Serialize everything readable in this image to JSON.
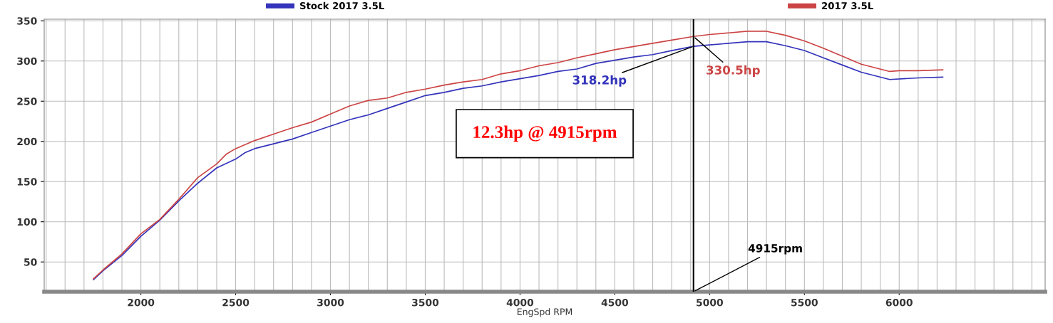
{
  "chart_data": {
    "type": "line",
    "xlabel": "EngSpd RPM",
    "xlim": [
      1490,
      6770
    ],
    "ylim": [
      13,
      352
    ],
    "xticks": [
      2000,
      2500,
      3000,
      3500,
      4000,
      4500,
      5000,
      5500,
      6000
    ],
    "yticks": [
      50,
      100,
      150,
      200,
      250,
      300,
      350
    ],
    "grid": true,
    "legend": "top",
    "line_style": "solid",
    "marker": "none",
    "series": [
      {
        "name": "Stock 2017 3.5L",
        "color": "#3333bb",
        "x": [
          1750,
          1800,
          1900,
          2000,
          2100,
          2200,
          2300,
          2400,
          2500,
          2550,
          2600,
          2700,
          2800,
          2900,
          3000,
          3100,
          3200,
          3300,
          3400,
          3500,
          3600,
          3700,
          3800,
          3900,
          4000,
          4100,
          4200,
          4300,
          4400,
          4500,
          4600,
          4700,
          4800,
          4915,
          5000,
          5100,
          5200,
          5300,
          5400,
          5500,
          5600,
          5700,
          5800,
          5950,
          6100,
          6230
        ],
        "values": [
          28,
          39,
          58,
          82,
          102,
          126,
          148,
          167,
          178,
          186,
          191,
          197,
          203,
          211,
          219,
          227,
          233,
          241,
          249,
          257,
          261,
          266,
          269,
          274,
          278,
          282,
          287,
          290,
          297,
          301,
          305,
          308,
          313,
          318.2,
          320,
          322,
          324,
          324,
          319,
          313,
          304,
          295,
          286,
          277,
          279,
          280
        ]
      },
      {
        "name": "2017 3.5L",
        "color": "#cc4444",
        "x": [
          1750,
          1800,
          1900,
          2000,
          2100,
          2200,
          2300,
          2400,
          2450,
          2500,
          2600,
          2700,
          2800,
          2900,
          3000,
          3100,
          3200,
          3300,
          3400,
          3500,
          3600,
          3700,
          3800,
          3900,
          4000,
          4100,
          4200,
          4300,
          4400,
          4500,
          4600,
          4700,
          4800,
          4915,
          5000,
          5100,
          5200,
          5300,
          5400,
          5500,
          5600,
          5700,
          5800,
          5950,
          6000,
          6100,
          6230
        ],
        "values": [
          29,
          40,
          60,
          85,
          103,
          128,
          155,
          172,
          184,
          191,
          201,
          209,
          217,
          224,
          234,
          244,
          251,
          254,
          261,
          265,
          270,
          274,
          277,
          284,
          288,
          294,
          298,
          304,
          309,
          314,
          318,
          322,
          326,
          330.5,
          333,
          335,
          337,
          337,
          332,
          325,
          316,
          306,
          296,
          287,
          288,
          288,
          289
        ]
      }
    ],
    "ref_lines": [
      {
        "axis": "x",
        "value": 4915,
        "label": "4915rpm",
        "color": "#000000"
      }
    ],
    "annotations": [
      {
        "text": "318.2hp",
        "x": 4915,
        "y": 318.2
      },
      {
        "text": "330.5hp",
        "x": 4915,
        "y": 330.5
      },
      "12.3hp @ 4915rpm"
    ]
  }
}
